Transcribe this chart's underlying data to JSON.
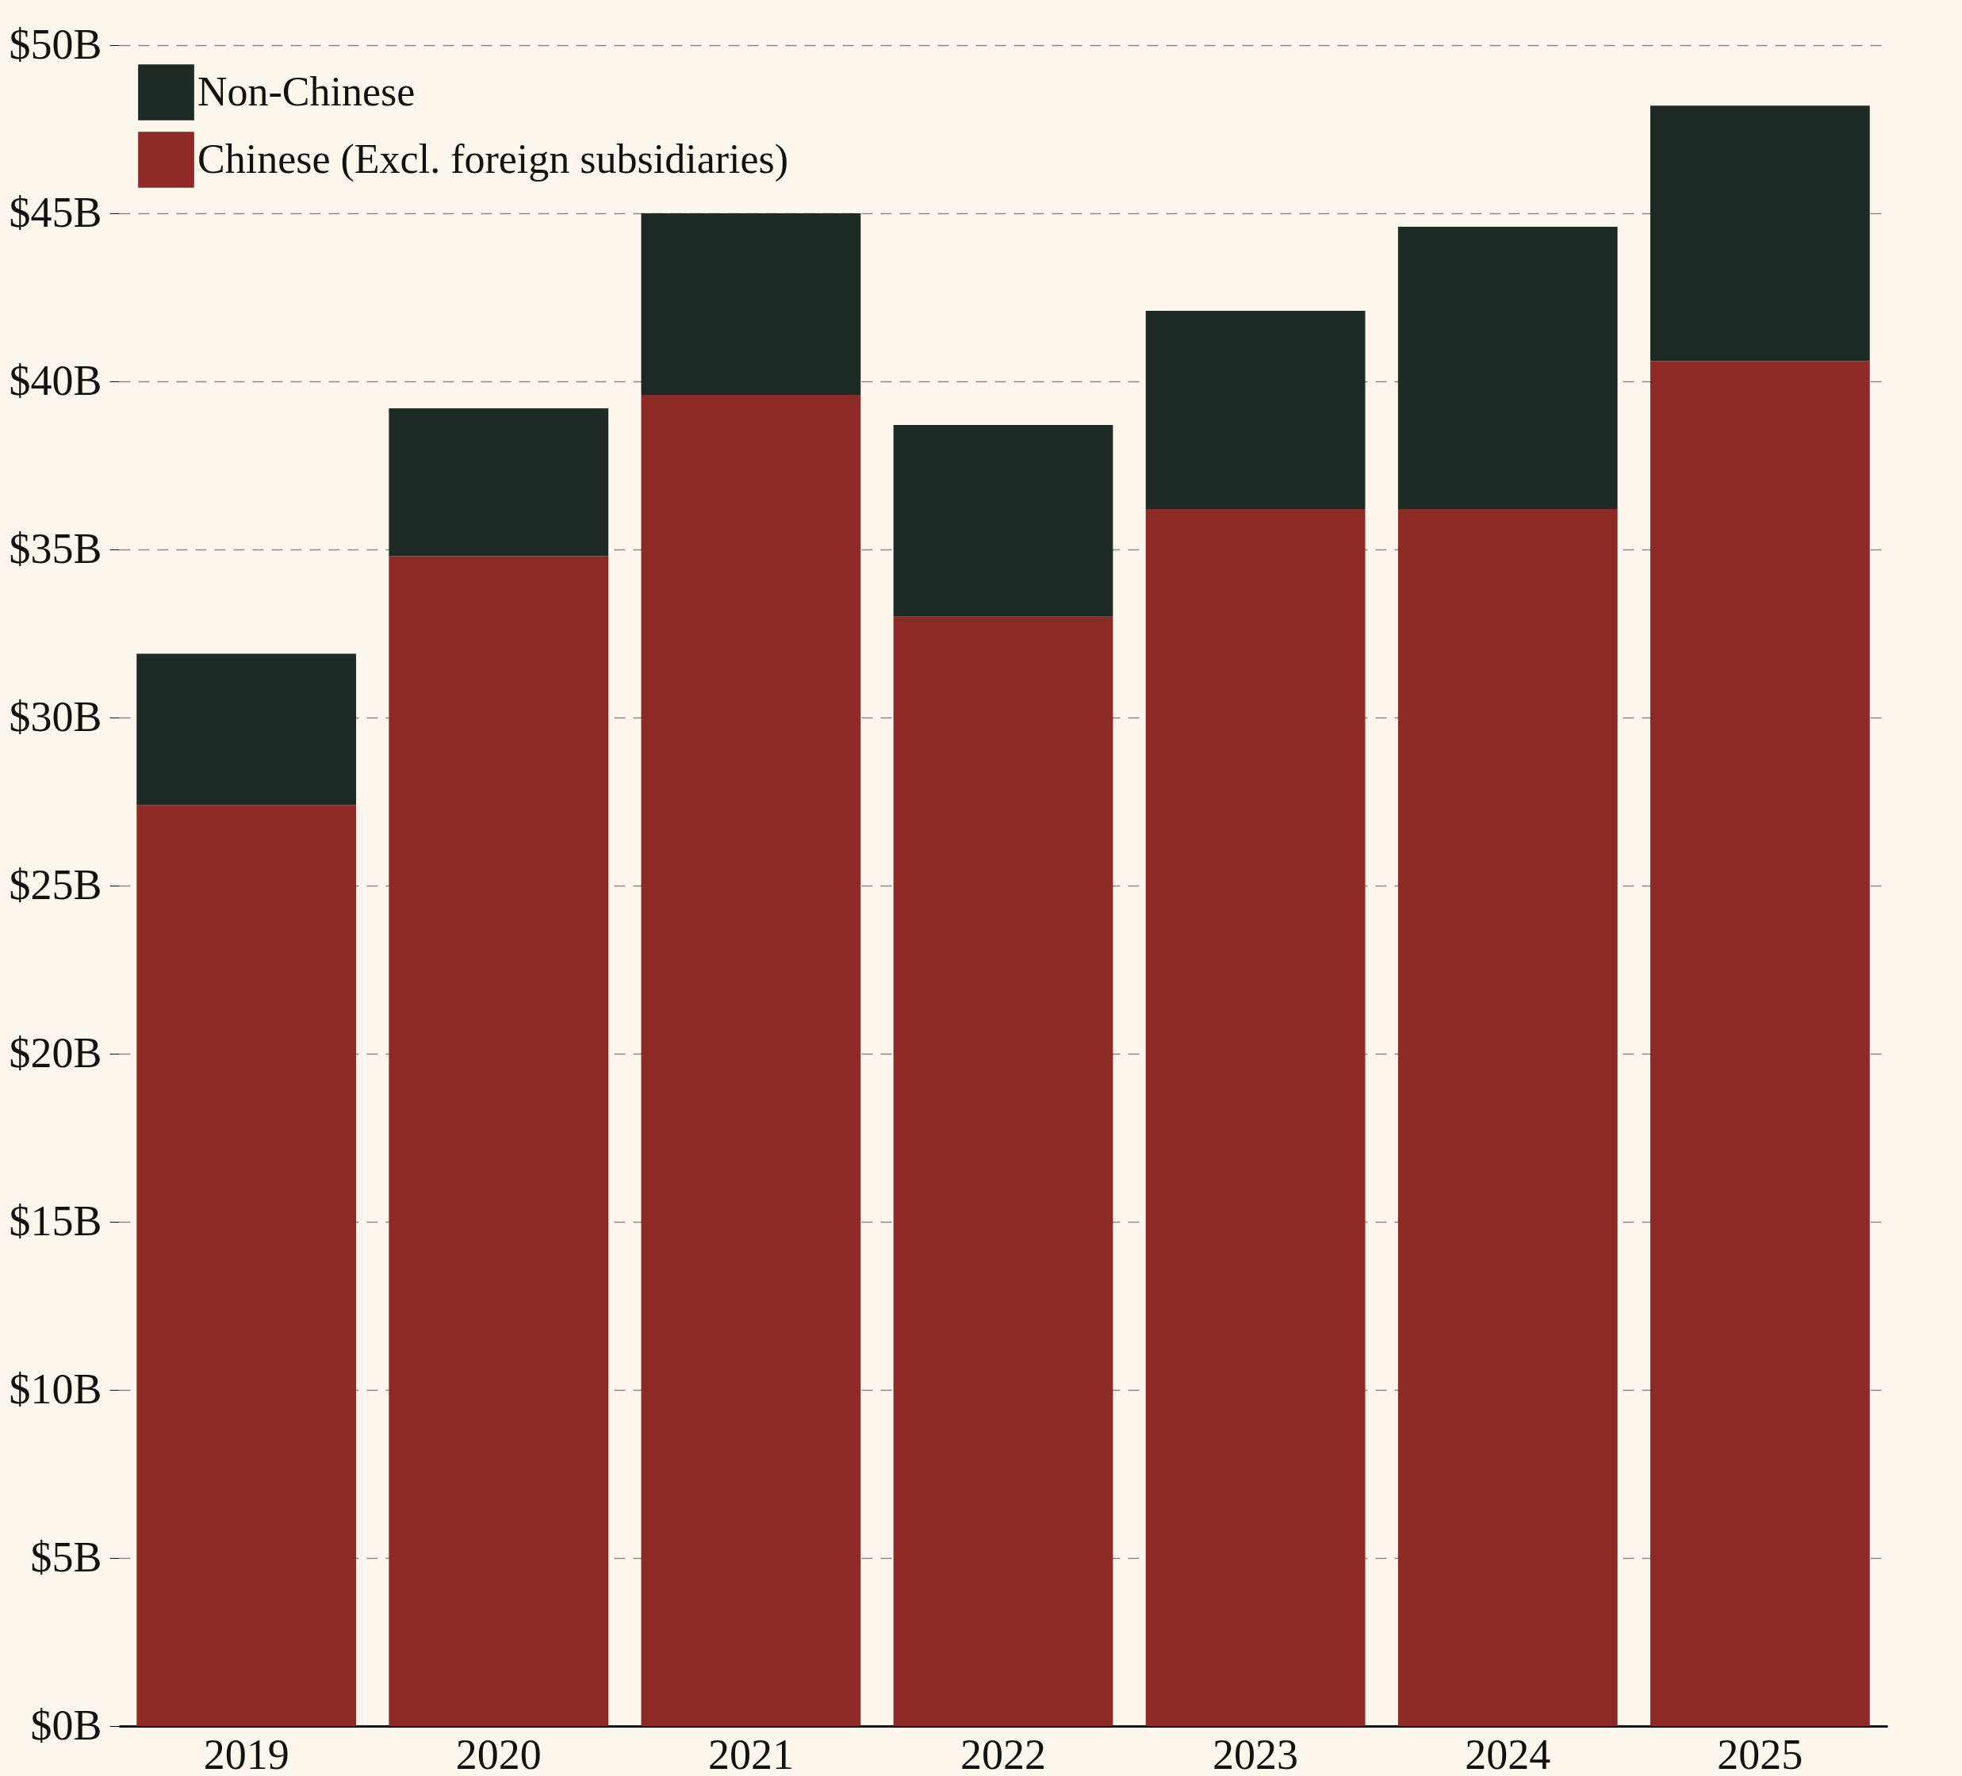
{
  "chart_data": {
    "type": "bar",
    "stacked": true,
    "categories": [
      "2019",
      "2020",
      "2021",
      "2022",
      "2023",
      "2024",
      "2025"
    ],
    "series": [
      {
        "name": "Chinese (Excl. foreign subsidiaries)",
        "color": "#8e2a26",
        "values": [
          27.4,
          34.8,
          39.6,
          33.0,
          36.2,
          36.2,
          40.6
        ]
      },
      {
        "name": "Non-Chinese",
        "color": "#1e2b25",
        "values": [
          4.5,
          4.4,
          5.4,
          5.7,
          5.9,
          8.4,
          7.6
        ]
      }
    ],
    "ylim": [
      0,
      50
    ],
    "yticks": [
      {
        "value": 0,
        "label": "$0B"
      },
      {
        "value": 5,
        "label": "$5B"
      },
      {
        "value": 10,
        "label": "$10B"
      },
      {
        "value": 15,
        "label": "$15B"
      },
      {
        "value": 20,
        "label": "$20B"
      },
      {
        "value": 25,
        "label": "$25B"
      },
      {
        "value": 30,
        "label": "$30B"
      },
      {
        "value": 35,
        "label": "$35B"
      },
      {
        "value": 40,
        "label": "$40B"
      },
      {
        "value": 45,
        "label": "$45B"
      },
      {
        "value": 50,
        "label": "$50B"
      }
    ],
    "grid": "y",
    "legend": "top left"
  }
}
